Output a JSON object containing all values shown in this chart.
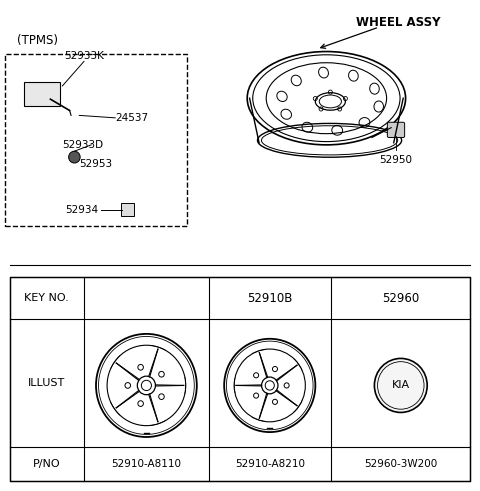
{
  "bg_color": "#ffffff",
  "line_color": "#000000",
  "text_color": "#000000",
  "tpms_label": "(TPMS)",
  "wheel_assy_label": "WHEEL ASSY",
  "table_key_no_label": "KEY NO.",
  "table_52910B": "52910B",
  "table_52960": "52960",
  "table_illust": "ILLUST",
  "table_pno": "P/NO",
  "pno_1": "52910-A8110",
  "pno_2": "52910-A8210",
  "pno_3": "52960-3W200",
  "label_52933K": "52933K",
  "label_24537": "24537",
  "label_52933D": "52933D",
  "label_52953": "52953",
  "label_52934": "52934",
  "label_52950": "52950"
}
